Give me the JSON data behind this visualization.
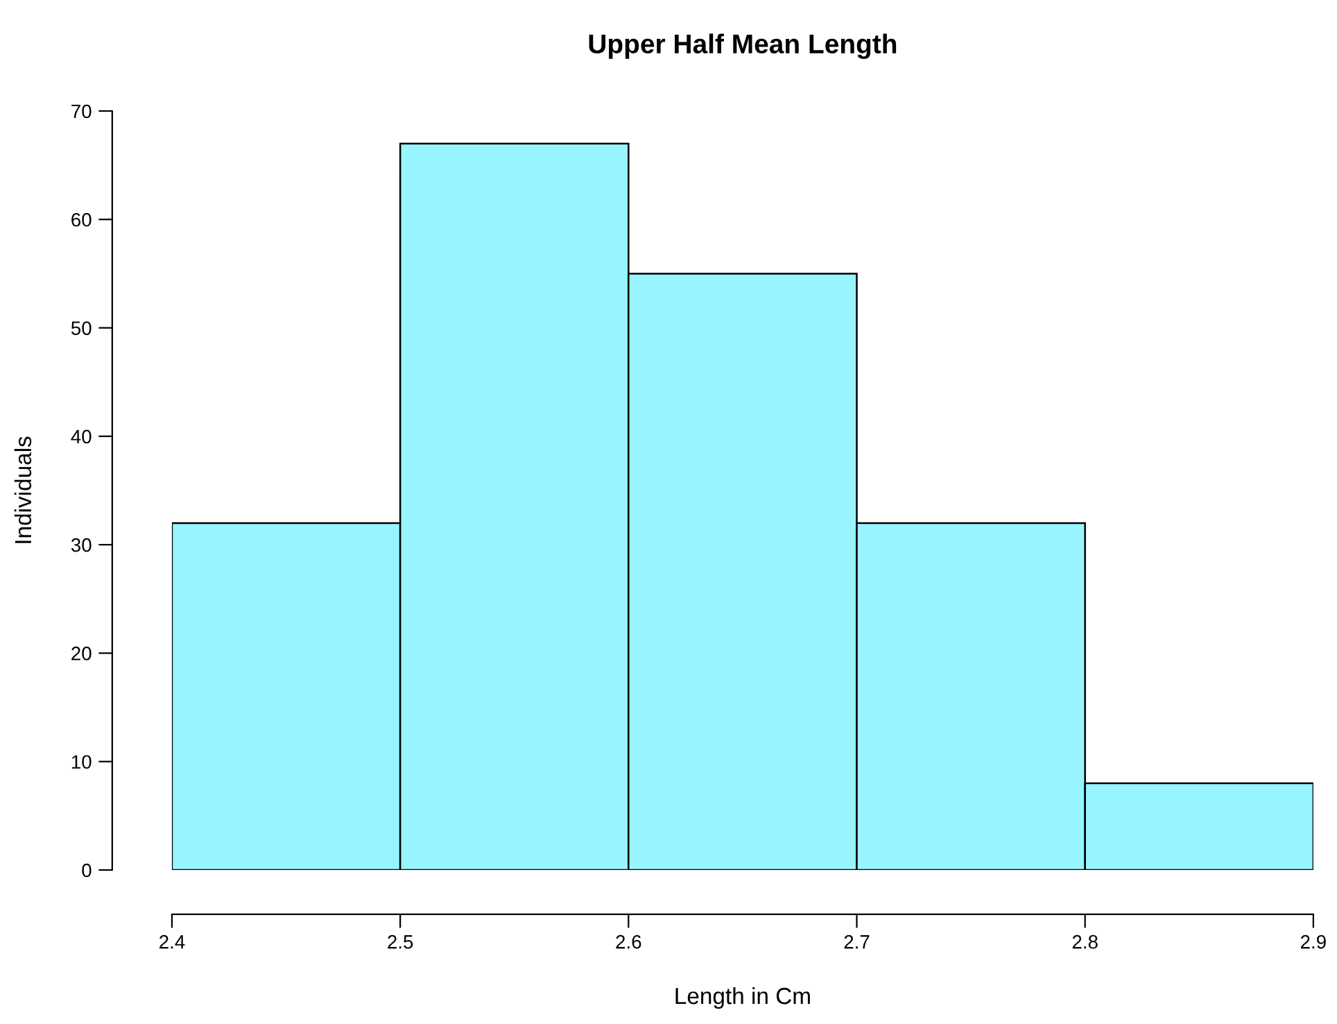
{
  "chart_data": {
    "type": "histogram",
    "title": "Upper Half Mean Length",
    "xlabel": "Length in Cm",
    "ylabel": "Individuals",
    "bins": [
      2.4,
      2.5,
      2.6,
      2.7,
      2.8,
      2.9
    ],
    "values": [
      32,
      67,
      55,
      32,
      8
    ],
    "color": "#98f5ff",
    "xlim": [
      2.4,
      2.9
    ],
    "xticks": [
      2.4,
      2.5,
      2.6,
      2.7,
      2.8,
      2.9
    ],
    "ylim": [
      0,
      70
    ],
    "yticks": [
      0,
      10,
      20,
      30,
      40,
      50,
      60,
      70
    ],
    "grid": false
  }
}
